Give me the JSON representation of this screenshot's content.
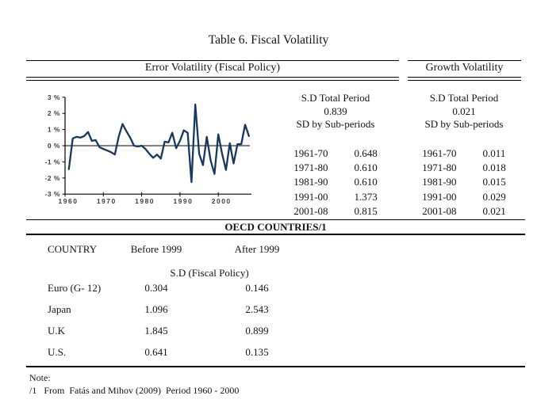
{
  "title": "Table 6. Fiscal Volatility",
  "headers": {
    "error": "Error Volatility (Fiscal Policy)",
    "growth": "Growth Volatility"
  },
  "error_stats": {
    "total_label": "S.D Total Period",
    "total_value": "0.839",
    "sub_label": "SD by Sub-periods",
    "rows": [
      {
        "period": "1961-70",
        "value": "0.648"
      },
      {
        "period": "1971-80",
        "value": "0.610"
      },
      {
        "period": "1981-90",
        "value": "0.610"
      },
      {
        "period": "1991-00",
        "value": "1.373"
      },
      {
        "period": "2001-08",
        "value": "0.815"
      }
    ]
  },
  "growth_stats": {
    "total_label": "S.D Total Period",
    "total_value": "0.021",
    "sub_label": "SD by Sub-periods",
    "rows": [
      {
        "period": "1961-70",
        "value": "0.011"
      },
      {
        "period": "1971-80",
        "value": "0.018"
      },
      {
        "period": "1981-90",
        "value": "0.015"
      },
      {
        "period": "1991-00",
        "value": "0.029"
      },
      {
        "period": "2001-08",
        "value": "0.021"
      }
    ]
  },
  "oecd": {
    "header": "OECD COUNTRIES/1",
    "columns": {
      "country": "COUNTRY",
      "before": "Before 1999",
      "after": "After 1999"
    },
    "sub_header": "S.D (Fiscal Policy)",
    "rows": [
      {
        "country": "Euro (G- 12)",
        "before": "0.304",
        "after": "0.146"
      },
      {
        "country": "Japan",
        "before": "1.096",
        "after": "2.543"
      },
      {
        "country": "U.K",
        "before": "1.845",
        "after": "0.899"
      },
      {
        "country": "U.S.",
        "before": "0.641",
        "after": "0.135"
      }
    ]
  },
  "note": {
    "label": "Note:",
    "text": "/1   From  Fatás and Mihov (2009)  Period 1960 - 2000"
  },
  "chart_data": {
    "type": "line",
    "title": "Error Volatility (Fiscal Policy) time series",
    "xlabel": "",
    "ylabel": "%",
    "xlim": [
      1960,
      2008
    ],
    "ylim": [
      -3,
      3
    ],
    "grid": false,
    "legend": "none",
    "line_color": "#17375E",
    "x_ticks": [
      1960,
      1970,
      1980,
      1990,
      2000
    ],
    "y_ticks": [
      {
        "label": "3 %",
        "value": 3
      },
      {
        "label": "2 %",
        "value": 2
      },
      {
        "label": "1 %",
        "value": 1
      },
      {
        "label": "0 %",
        "value": 0
      },
      {
        "label": "-1 %",
        "value": -1
      },
      {
        "label": "-2 %",
        "value": -2
      },
      {
        "label": "-3 %",
        "value": -3
      }
    ],
    "x": [
      1961,
      1962,
      1963,
      1964,
      1965,
      1966,
      1967,
      1968,
      1969,
      1970,
      1971,
      1972,
      1973,
      1974,
      1975,
      1976,
      1977,
      1978,
      1979,
      1980,
      1981,
      1982,
      1983,
      1984,
      1985,
      1986,
      1987,
      1988,
      1989,
      1990,
      1991,
      1992,
      1993,
      1994,
      1995,
      1996,
      1997,
      1998,
      1999,
      2000,
      2001,
      2002,
      2003,
      2004,
      2005,
      2006,
      2007,
      2008
    ],
    "values": [
      -1.45,
      0.45,
      0.55,
      0.5,
      0.6,
      0.85,
      0.3,
      0.35,
      -0.1,
      -0.2,
      -0.3,
      -0.4,
      -0.55,
      0.55,
      1.35,
      0.9,
      0.5,
      0.0,
      -0.05,
      0.0,
      -0.2,
      -0.5,
      -0.75,
      -0.55,
      -0.8,
      0.25,
      0.2,
      0.8,
      -0.15,
      0.3,
      0.95,
      0.8,
      -2.25,
      2.55,
      -0.5,
      -1.2,
      0.55,
      -0.9,
      -1.75,
      0.7,
      -0.5,
      -1.5,
      0.15,
      -1.1,
      0.1,
      0.1,
      1.3,
      0.6
    ]
  }
}
